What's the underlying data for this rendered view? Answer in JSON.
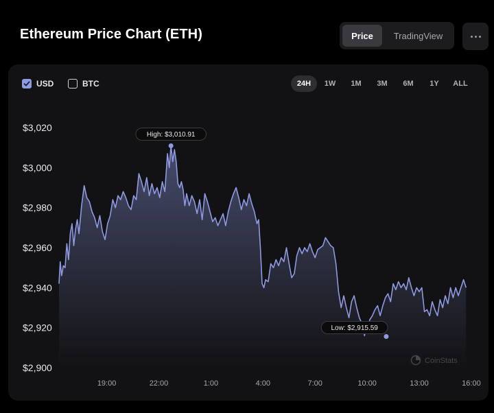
{
  "header": {
    "title": "Ethereum Price Chart (ETH)"
  },
  "view_toggle": {
    "price_label": "Price",
    "tradingview_label": "TradingView"
  },
  "currency": {
    "usd_label": "USD",
    "btc_label": "BTC",
    "usd_checked": true,
    "btc_checked": false
  },
  "ranges": [
    "24H",
    "1W",
    "1M",
    "3M",
    "6M",
    "1Y",
    "ALL"
  ],
  "active_range": "24H",
  "watermark": "CoinStats",
  "colors": {
    "line": "#8e9ae2",
    "accent": "#8e9ae2",
    "background": "#000000",
    "card": "#121214"
  },
  "chart_data": {
    "type": "area",
    "xlabel": "",
    "ylabel": "",
    "ylim": [
      2900,
      3020
    ],
    "yticks": [
      3020,
      3000,
      2980,
      2960,
      2940,
      2920,
      2900
    ],
    "ytick_labels": [
      "$3,020",
      "$3,000",
      "$2,980",
      "$2,960",
      "$2,940",
      "$2,920",
      "$2,900"
    ],
    "xticks": [
      2,
      5,
      8,
      11,
      14,
      17,
      20,
      23
    ],
    "xtick_labels": [
      "19:00",
      "22:00",
      "1:00",
      "4:00",
      "7:00",
      "10:00",
      "13:00",
      "16:00"
    ],
    "xlim": [
      -0.75,
      23.2
    ],
    "high_label": "High: $3,010.91",
    "low_label": "Low: $2,915.59",
    "high": {
      "x": 5.7,
      "y": 3010.91
    },
    "low": {
      "x": 18.1,
      "y": 2915.59
    },
    "series": [
      {
        "points": [
          [
            -0.75,
            2942
          ],
          [
            -0.68,
            2953
          ],
          [
            -0.6,
            2946
          ],
          [
            -0.5,
            2951
          ],
          [
            -0.4,
            2950
          ],
          [
            -0.3,
            2962
          ],
          [
            -0.2,
            2954
          ],
          [
            -0.1,
            2967
          ],
          [
            0.0,
            2972
          ],
          [
            0.1,
            2961
          ],
          [
            0.2,
            2969
          ],
          [
            0.3,
            2974
          ],
          [
            0.4,
            2967
          ],
          [
            0.55,
            2981
          ],
          [
            0.7,
            2991
          ],
          [
            0.85,
            2985
          ],
          [
            1.0,
            2983
          ],
          [
            1.15,
            2978
          ],
          [
            1.3,
            2975
          ],
          [
            1.45,
            2970
          ],
          [
            1.6,
            2976
          ],
          [
            1.75,
            2968
          ],
          [
            1.9,
            2964
          ],
          [
            2.05,
            2972
          ],
          [
            2.2,
            2976
          ],
          [
            2.35,
            2984
          ],
          [
            2.5,
            2980
          ],
          [
            2.65,
            2986
          ],
          [
            2.8,
            2984
          ],
          [
            2.95,
            2988
          ],
          [
            3.1,
            2985
          ],
          [
            3.25,
            2981
          ],
          [
            3.4,
            2979
          ],
          [
            3.55,
            2986
          ],
          [
            3.7,
            2984
          ],
          [
            3.85,
            2997
          ],
          [
            4.0,
            2993
          ],
          [
            4.15,
            2988
          ],
          [
            4.3,
            2995
          ],
          [
            4.45,
            2986
          ],
          [
            4.6,
            2992
          ],
          [
            4.75,
            2987
          ],
          [
            4.9,
            2990
          ],
          [
            5.05,
            2985
          ],
          [
            5.2,
            2993
          ],
          [
            5.35,
            2988
          ],
          [
            5.5,
            3007
          ],
          [
            5.6,
            3000
          ],
          [
            5.7,
            3010.9
          ],
          [
            5.8,
            3003
          ],
          [
            5.9,
            3009
          ],
          [
            6.0,
            3003
          ],
          [
            6.1,
            2992
          ],
          [
            6.2,
            2990
          ],
          [
            6.3,
            2993
          ],
          [
            6.4,
            2989
          ],
          [
            6.5,
            2981
          ],
          [
            6.6,
            2987
          ],
          [
            6.75,
            2981
          ],
          [
            6.9,
            2986
          ],
          [
            7.05,
            2983
          ],
          [
            7.2,
            2977
          ],
          [
            7.35,
            2984
          ],
          [
            7.5,
            2974
          ],
          [
            7.65,
            2987
          ],
          [
            7.8,
            2983
          ],
          [
            7.95,
            2978
          ],
          [
            8.1,
            2973
          ],
          [
            8.25,
            2975
          ],
          [
            8.4,
            2971
          ],
          [
            8.55,
            2974
          ],
          [
            8.7,
            2977
          ],
          [
            8.85,
            2971
          ],
          [
            9.0,
            2978
          ],
          [
            9.15,
            2983
          ],
          [
            9.3,
            2987
          ],
          [
            9.45,
            2990
          ],
          [
            9.6,
            2985
          ],
          [
            9.75,
            2979
          ],
          [
            9.9,
            2984
          ],
          [
            10.05,
            2981
          ],
          [
            10.2,
            2987
          ],
          [
            10.35,
            2982
          ],
          [
            10.5,
            2978
          ],
          [
            10.65,
            2972
          ],
          [
            10.75,
            2974
          ],
          [
            10.85,
            2960
          ],
          [
            10.95,
            2942
          ],
          [
            11.05,
            2940
          ],
          [
            11.15,
            2944
          ],
          [
            11.3,
            2943
          ],
          [
            11.45,
            2952
          ],
          [
            11.6,
            2950
          ],
          [
            11.75,
            2954
          ],
          [
            11.9,
            2951
          ],
          [
            12.05,
            2955
          ],
          [
            12.2,
            2953
          ],
          [
            12.35,
            2960
          ],
          [
            12.5,
            2952
          ],
          [
            12.65,
            2945
          ],
          [
            12.8,
            2947
          ],
          [
            12.95,
            2956
          ],
          [
            13.1,
            2960
          ],
          [
            13.25,
            2957
          ],
          [
            13.4,
            2960
          ],
          [
            13.55,
            2958
          ],
          [
            13.7,
            2962
          ],
          [
            13.85,
            2958
          ],
          [
            14.0,
            2955
          ],
          [
            14.15,
            2959
          ],
          [
            14.3,
            2960
          ],
          [
            14.45,
            2961
          ],
          [
            14.6,
            2965
          ],
          [
            14.75,
            2963
          ],
          [
            14.9,
            2961
          ],
          [
            15.05,
            2960
          ],
          [
            15.2,
            2952
          ],
          [
            15.35,
            2938
          ],
          [
            15.5,
            2930
          ],
          [
            15.65,
            2936
          ],
          [
            15.8,
            2930
          ],
          [
            15.95,
            2925
          ],
          [
            16.1,
            2933
          ],
          [
            16.25,
            2936
          ],
          [
            16.4,
            2930
          ],
          [
            16.55,
            2925
          ],
          [
            16.7,
            2922
          ],
          [
            16.85,
            2916
          ],
          [
            16.95,
            2922
          ],
          [
            17.05,
            2918
          ],
          [
            17.15,
            2924
          ],
          [
            17.3,
            2926
          ],
          [
            17.45,
            2929
          ],
          [
            17.6,
            2931
          ],
          [
            17.75,
            2926
          ],
          [
            17.9,
            2931
          ],
          [
            18.05,
            2935
          ],
          [
            18.2,
            2937
          ],
          [
            18.35,
            2933
          ],
          [
            18.5,
            2942
          ],
          [
            18.65,
            2939
          ],
          [
            18.8,
            2943
          ],
          [
            18.95,
            2940
          ],
          [
            19.1,
            2942
          ],
          [
            19.25,
            2939
          ],
          [
            19.4,
            2945
          ],
          [
            19.55,
            2940
          ],
          [
            19.7,
            2936
          ],
          [
            19.85,
            2940
          ],
          [
            20.0,
            2938
          ],
          [
            20.15,
            2940
          ],
          [
            20.3,
            2928
          ],
          [
            20.45,
            2929
          ],
          [
            20.6,
            2926
          ],
          [
            20.75,
            2933
          ],
          [
            20.9,
            2929
          ],
          [
            21.05,
            2926
          ],
          [
            21.2,
            2934
          ],
          [
            21.35,
            2930
          ],
          [
            21.5,
            2936
          ],
          [
            21.65,
            2932
          ],
          [
            21.8,
            2940
          ],
          [
            21.95,
            2935
          ],
          [
            22.1,
            2940
          ],
          [
            22.25,
            2936
          ],
          [
            22.4,
            2940
          ],
          [
            22.55,
            2944
          ],
          [
            22.7,
            2940
          ]
        ]
      }
    ]
  }
}
